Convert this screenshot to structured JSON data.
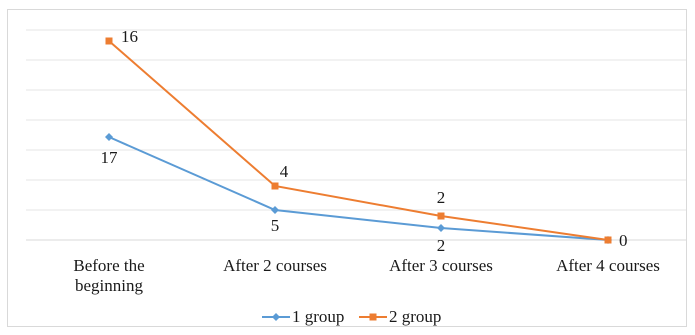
{
  "chart_data": {
    "type": "line",
    "categories": [
      "Before the beginning",
      "After 2 courses",
      "After 3 courses",
      "After 4 courses"
    ],
    "category_lines": [
      [
        "Before the",
        "beginning"
      ],
      [
        "After 2 courses"
      ],
      [
        "After 3 courses"
      ],
      [
        "After 4 courses"
      ]
    ],
    "series": [
      {
        "name": "1 group",
        "values": [
          17,
          5,
          2,
          0
        ],
        "labels": [
          "17",
          "5",
          "2",
          ""
        ],
        "color": "#5b9bd5",
        "marker": "diamond"
      },
      {
        "name": "2 group",
        "values": [
          16,
          4,
          2,
          0
        ],
        "labels": [
          "16",
          "4",
          "2",
          "0"
        ],
        "color": "#ed7d31",
        "marker": "square"
      }
    ],
    "grid": true,
    "legend": "bottom"
  }
}
